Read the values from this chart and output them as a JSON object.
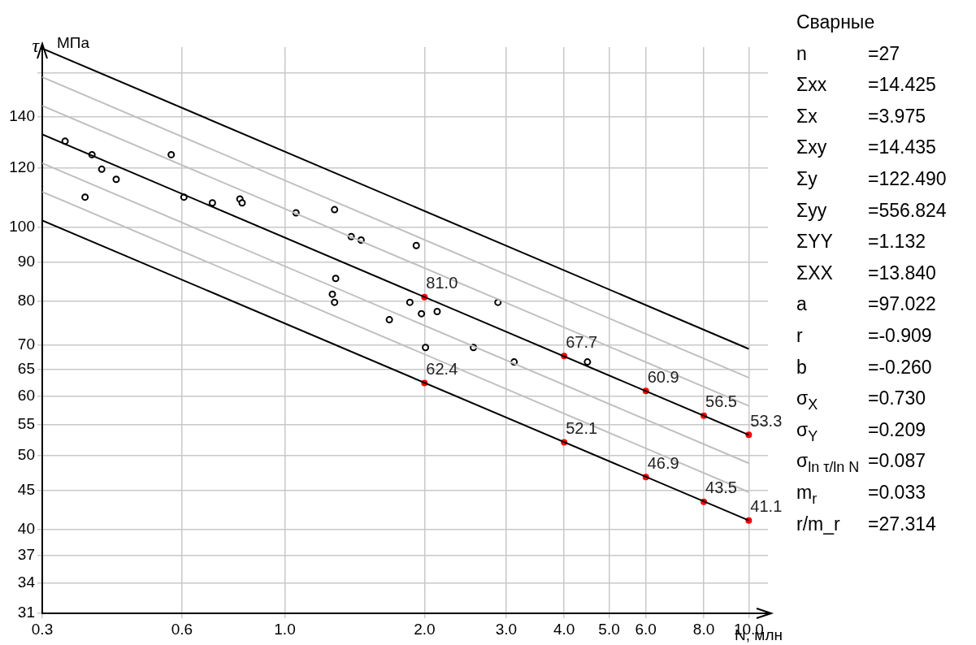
{
  "chart_data": {
    "type": "scatter",
    "title": "Сварные",
    "xlabel": "N, млн",
    "ylabel": "τ МПа",
    "log": "xy",
    "grid": true,
    "legend": false,
    "marker": "circle",
    "xlim": [
      0.3,
      11
    ],
    "xticks": [
      {
        "value": 0.3,
        "label": "0.3"
      },
      {
        "value": 0.6,
        "label": "0.6"
      },
      {
        "value": 1,
        "label": "1.0"
      },
      {
        "value": 2,
        "label": "2.0"
      },
      {
        "value": 3,
        "label": "3.0"
      },
      {
        "value": 4,
        "label": "4.0"
      },
      {
        "value": 5,
        "label": "5.0"
      },
      {
        "value": 6,
        "label": "6.0"
      },
      {
        "value": 8,
        "label": "8.0"
      },
      {
        "value": 10,
        "label": "10.0"
      }
    ],
    "ylim": [
      31,
      173
    ],
    "yticks": [
      31,
      34,
      37,
      40,
      45,
      50,
      55,
      60,
      65,
      70,
      80,
      90,
      100,
      120,
      140,
      {
        "value": 160,
        "label": null
      }
    ],
    "series": [
      {
        "type": "line",
        "marker": "none",
        "color": "#000000",
        "x": [
          0.3,
          10
        ],
        "values": [
          172.3,
          69.2
        ]
      },
      {
        "type": "line",
        "marker": "none",
        "color": "#c0c0c0",
        "x": [
          0.3,
          10
        ],
        "values": [
          157.9,
          63.4
        ]
      },
      {
        "type": "line",
        "marker": "none",
        "color": "#c0c0c0",
        "x": [
          0.3,
          10
        ],
        "values": [
          144.8,
          58.2
        ]
      },
      {
        "type": "line",
        "marker": "none",
        "color": "#000000",
        "x": [
          0.3,
          10
        ],
        "values": [
          132.7,
          53.3
        ]
      },
      {
        "type": "line",
        "marker": "none",
        "color": "#c0c0c0",
        "x": [
          0.3,
          10
        ],
        "values": [
          121.6,
          48.9
        ]
      },
      {
        "type": "line",
        "marker": "none",
        "color": "#c0c0c0",
        "x": [
          0.3,
          10
        ],
        "values": [
          111.5,
          44.8
        ]
      },
      {
        "type": "line",
        "marker": "none",
        "color": "#000000",
        "x": [
          0.3,
          10
        ],
        "values": [
          102.2,
          41.1
        ]
      },
      {
        "color": "#000000",
        "x": [
          0.336,
          0.371,
          0.384,
          0.403,
          0.433,
          0.569,
          0.606,
          0.698,
          0.8,
          0.809,
          1.057,
          1.28,
          1.39,
          1.46,
          1.92,
          1.287,
          1.266,
          1.28,
          1.68,
          1.86,
          1.97,
          2.13,
          2.88,
          2.01,
          2.55,
          3.12,
          4.49
        ],
        "values": [
          130,
          109.7,
          124.8,
          119.4,
          115.8,
          124.8,
          109.7,
          107.8,
          109.1,
          107.8,
          104.6,
          105.6,
          97.3,
          96.3,
          94.7,
          85.7,
          81.7,
          79.7,
          75.6,
          79.7,
          77,
          77.5,
          79.7,
          69.5,
          69.5,
          66.5,
          66.5
        ]
      },
      {
        "color": "#ff0000",
        "x": [
          2,
          4,
          6,
          8,
          10
        ],
        "values": [
          81.0,
          67.7,
          60.9,
          56.5,
          53.3
        ],
        "value_labels": [
          "81.0",
          "67.7",
          "60.9",
          "56.5",
          "53.3"
        ]
      },
      {
        "color": "#ff0000",
        "x": [
          2,
          4,
          6,
          8,
          10
        ],
        "values": [
          62.4,
          52.1,
          46.9,
          43.5,
          41.1
        ],
        "value_labels": [
          "62.4",
          "52.1",
          "46.9",
          "43.5",
          "41.1"
        ]
      }
    ],
    "annotations": [
      "n =27",
      "Σxx =14.425",
      "Σx =3.975",
      "Σxy =14.435",
      "Σy =122.490",
      "Σyy =556.824",
      "ΣYY =1.132",
      "ΣXX =13.840",
      "a =97.022",
      "r =-0.909",
      "b =-0.260",
      "σ$_{X}$ =0.730",
      "σ$_{Y}$ =0.209",
      "σ$_{ln τ/ln N}$ =0.087",
      "m$_{r}$ =0.033",
      "r/m_r =27.314"
    ]
  }
}
